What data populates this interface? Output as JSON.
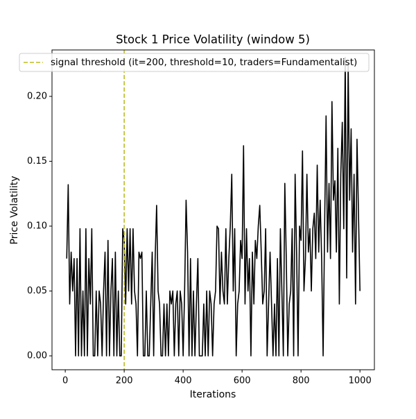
{
  "chart_data": {
    "type": "line",
    "title": "Stock 1 Price Volatility (window 5)",
    "x_label": "Iterations",
    "y_label": "Price Volatility",
    "xlim": [
      -45,
      1049
    ],
    "ylim": [
      -0.0107,
      0.2358
    ],
    "xticks": [
      0,
      200,
      400,
      600,
      800,
      1000
    ],
    "yticks": [
      {
        "value": 0,
        "label": "0.00"
      },
      {
        "value": 0.05,
        "label": "0.05"
      },
      {
        "value": 0.1,
        "label": "0.10"
      },
      {
        "value": 0.15,
        "label": "0.15"
      },
      {
        "value": 0.2,
        "label": "0.20"
      }
    ],
    "grid": false,
    "threshold_line": {
      "x": 200,
      "label": "signal threshold (it=200, threshold=10, traders=Fundamentalist)",
      "color": "#bcbd22"
    },
    "x": [
      5,
      10,
      15,
      20,
      25,
      30,
      35,
      40,
      45,
      50,
      55,
      60,
      65,
      70,
      75,
      80,
      85,
      90,
      95,
      100,
      105,
      110,
      115,
      120,
      125,
      130,
      135,
      140,
      145,
      150,
      155,
      160,
      165,
      170,
      175,
      180,
      185,
      190,
      195,
      200,
      205,
      210,
      215,
      220,
      225,
      230,
      235,
      240,
      245,
      250,
      255,
      260,
      265,
      270,
      275,
      280,
      285,
      290,
      295,
      300,
      305,
      310,
      315,
      320,
      325,
      330,
      335,
      340,
      345,
      350,
      355,
      360,
      365,
      370,
      375,
      380,
      385,
      390,
      395,
      400,
      405,
      410,
      415,
      420,
      425,
      430,
      435,
      440,
      445,
      450,
      455,
      460,
      465,
      470,
      475,
      480,
      485,
      490,
      495,
      500,
      505,
      510,
      515,
      520,
      525,
      530,
      535,
      540,
      545,
      550,
      555,
      560,
      565,
      570,
      575,
      580,
      585,
      590,
      595,
      600,
      605,
      610,
      615,
      620,
      625,
      630,
      635,
      640,
      645,
      650,
      655,
      660,
      665,
      670,
      675,
      680,
      685,
      690,
      695,
      700,
      705,
      710,
      715,
      720,
      725,
      730,
      735,
      740,
      745,
      750,
      755,
      760,
      765,
      770,
      775,
      780,
      785,
      790,
      795,
      800,
      805,
      810,
      815,
      820,
      825,
      830,
      835,
      840,
      845,
      850,
      855,
      860,
      865,
      870,
      875,
      880,
      885,
      890,
      895,
      900,
      905,
      910,
      915,
      920,
      925,
      930,
      935,
      940,
      945,
      950,
      955,
      960,
      965,
      970,
      975,
      980,
      985,
      990,
      995,
      1000
    ],
    "series": [
      {
        "color": "#000000",
        "values": [
          0.075,
          0.132,
          0.04,
          0.08,
          0.05,
          0.075,
          0.0,
          0.075,
          0.0,
          0.098,
          0.0,
          0.05,
          0.0,
          0.098,
          0.0,
          0.075,
          0.04,
          0.098,
          0.0,
          0.0,
          0.05,
          0.0,
          0.05,
          0.04,
          0.0,
          0.05,
          0.08,
          0.0,
          0.089,
          0.0,
          0.05,
          0.075,
          0.0,
          0.08,
          0.0,
          0.05,
          0.0,
          0.0,
          0.098,
          0.089,
          0.04,
          0.098,
          0.05,
          0.098,
          0.04,
          0.098,
          0.05,
          0.04,
          0.0,
          0.08,
          0.075,
          0.08,
          0.0,
          0.0,
          0.05,
          0.0,
          0.0,
          0.04,
          0.08,
          0.0,
          0.075,
          0.116,
          0.05,
          0.04,
          0.0,
          0.0,
          0.04,
          0.0,
          0.04,
          0.0,
          0.05,
          0.04,
          0.05,
          0.0,
          0.04,
          0.05,
          0.0,
          0.05,
          0.04,
          0.0,
          0.05,
          0.12,
          0.08,
          0.0,
          0.075,
          0.0,
          0.05,
          0.0,
          0.04,
          0.075,
          0.0,
          0.0,
          0.0,
          0.04,
          0.0,
          0.05,
          0.0,
          0.05,
          0.04,
          0.0,
          0.04,
          0.05,
          0.1,
          0.098,
          0.04,
          0.08,
          0.05,
          0.04,
          0.098,
          0.04,
          0.075,
          0.1,
          0.14,
          0.05,
          0.098,
          0.0,
          0.04,
          0.05,
          0.089,
          0.075,
          0.162,
          0.04,
          0.098,
          0.05,
          0.075,
          0.0,
          0.08,
          0.04,
          0.089,
          0.075,
          0.1,
          0.116,
          0.08,
          0.04,
          0.05,
          0.098,
          0.0,
          0.04,
          0.08,
          0.04,
          0.0,
          0.04,
          0.0,
          0.075,
          0.0,
          0.098,
          0.05,
          0.0,
          0.133,
          0.075,
          0.0,
          0.04,
          0.05,
          0.098,
          0.0,
          0.14,
          0.08,
          0.0,
          0.1,
          0.089,
          0.158,
          0.05,
          0.075,
          0.14,
          0.08,
          0.098,
          0.05,
          0.098,
          0.11,
          0.075,
          0.147,
          0.08,
          0.12,
          0.075,
          0.0,
          0.098,
          0.185,
          0.08,
          0.133,
          0.075,
          0.196,
          0.12,
          0.135,
          0.08,
          0.16,
          0.04,
          0.14,
          0.18,
          0.098,
          0.23,
          0.06,
          0.225,
          0.12,
          0.175,
          0.08,
          0.14,
          0.04,
          0.167,
          0.11,
          0.05
        ]
      }
    ]
  }
}
